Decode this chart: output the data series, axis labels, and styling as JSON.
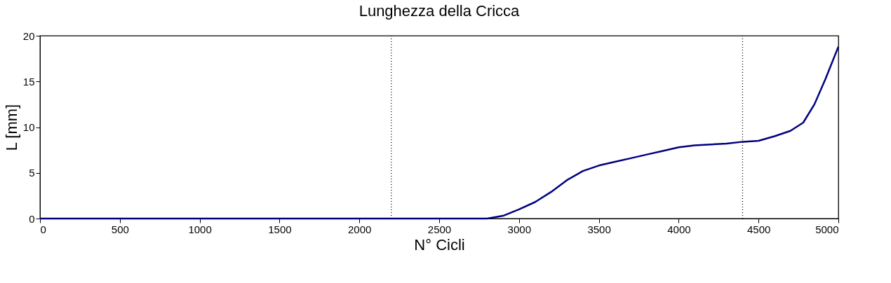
{
  "chart_data": {
    "type": "line",
    "title": "Lunghezza della Cricca",
    "xlabel": "N° Cicli",
    "ylabel": "L [mm]",
    "x": [
      0,
      500,
      1000,
      1500,
      2000,
      2500,
      2800,
      2900,
      3000,
      3100,
      3200,
      3300,
      3400,
      3500,
      3600,
      3700,
      3800,
      3900,
      4000,
      4100,
      4200,
      4300,
      4400,
      4500,
      4600,
      4700,
      4780,
      4850,
      4920,
      5000
    ],
    "series": [
      {
        "color": "#000080",
        "values": [
          0,
          0,
          0,
          0,
          0,
          0,
          0,
          0.3,
          1.0,
          1.8,
          2.9,
          4.2,
          5.2,
          5.8,
          6.2,
          6.6,
          7.0,
          7.4,
          7.8,
          8.0,
          8.1,
          8.2,
          8.4,
          8.5,
          9.0,
          9.6,
          10.5,
          12.5,
          15.3,
          18.8
        ]
      }
    ],
    "xlim": [
      0,
      5000
    ],
    "xticks": [
      0,
      500,
      1000,
      1500,
      2000,
      2500,
      3000,
      3500,
      4000,
      4500,
      5000
    ],
    "ylim": [
      0,
      20
    ],
    "yticks": [
      0,
      5,
      10,
      15,
      20
    ],
    "grid": false,
    "marker": "none",
    "line_style": "solid",
    "ref_lines": [
      {
        "axis": "x",
        "value": 2200,
        "color": "#000000",
        "line_style": "dotted"
      },
      {
        "axis": "x",
        "value": 4400,
        "color": "#000000",
        "line_style": "dotted"
      }
    ]
  }
}
